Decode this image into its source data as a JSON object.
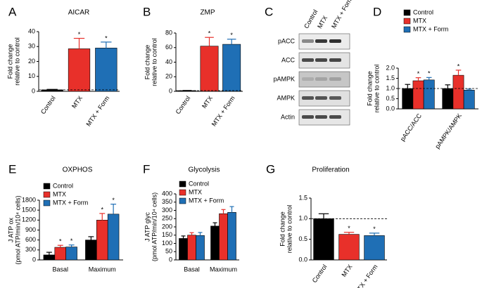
{
  "chart_data": [
    {
      "label": "A",
      "type": "bar",
      "title": "AICAR",
      "ylabel": [
        "Fold change",
        "relative to control"
      ],
      "categories": [
        "Control",
        "MTX",
        "MTX + Form"
      ],
      "values": [
        1,
        28.5,
        29
      ],
      "errors": [
        0.3,
        7,
        4
      ],
      "colors": [
        "#000000",
        "#e8302a",
        "#1f6fb5"
      ],
      "significance": [
        null,
        "*",
        "*"
      ],
      "reference_line": 1,
      "ylim": [
        0,
        40
      ],
      "yticks": [
        0,
        10,
        20,
        30,
        40
      ]
    },
    {
      "label": "B",
      "type": "bar",
      "title": "ZMP",
      "ylabel": [
        "Fold change",
        "relative to control"
      ],
      "categories": [
        "Control",
        "MTX",
        "MTX + Form"
      ],
      "values": [
        1,
        62,
        64.5
      ],
      "errors": [
        0.2,
        12,
        7
      ],
      "colors": [
        "#000000",
        "#e8302a",
        "#1f6fb5"
      ],
      "significance": [
        null,
        "*",
        "*"
      ],
      "reference_line": 1,
      "ylim": [
        0,
        80
      ],
      "yticks": [
        0,
        20,
        40,
        60,
        80
      ]
    },
    {
      "label": "D",
      "type": "grouped_bar",
      "ylabel": [
        "Fold change",
        "relative to control"
      ],
      "categories": [
        "pACC/ACC",
        "pAMPK/AMPK"
      ],
      "reference_line": 1,
      "series": [
        {
          "name": "Control",
          "color": "#000000",
          "values": [
            1,
            1
          ],
          "errors": [
            0.2,
            0.18
          ],
          "significance": [
            null,
            null
          ]
        },
        {
          "name": "MTX",
          "color": "#e8302a",
          "values": [
            1.38,
            1.65
          ],
          "errors": [
            0.15,
            0.25
          ],
          "significance": [
            "*",
            "*"
          ]
        },
        {
          "name": "MTX + Form",
          "color": "#1f6fb5",
          "values": [
            1.42,
            0.92
          ],
          "errors": [
            0.12,
            0.05
          ],
          "significance": [
            "*",
            null
          ]
        }
      ],
      "ylim": [
        0,
        2
      ],
      "yticks": [
        {
          "value": 0,
          "label": "0.0"
        },
        {
          "value": 0.5,
          "label": "0.5"
        },
        {
          "value": 1,
          "label": "1.0"
        },
        {
          "value": 1.5,
          "label": "1.5"
        },
        {
          "value": 2,
          "label": "2.0"
        }
      ]
    },
    {
      "label": "E",
      "type": "grouped_bar",
      "title": "OXPHOS",
      "ylabel": [
        "J ATP ox",
        "(pmol ATP/min/10⁴ cells)"
      ],
      "categories": [
        "Basal",
        "Maximum"
      ],
      "series": [
        {
          "name": "Control",
          "color": "#000000",
          "values": [
            150,
            600
          ],
          "errors": [
            80,
            100
          ],
          "significance": [
            null,
            null
          ]
        },
        {
          "name": "MTX",
          "color": "#e8302a",
          "values": [
            380,
            1200
          ],
          "errors": [
            60,
            200
          ],
          "significance": [
            "*",
            "*"
          ]
        },
        {
          "name": "MTX + Form",
          "color": "#1f6fb5",
          "values": [
            390,
            1380
          ],
          "errors": [
            60,
            300
          ],
          "significance": [
            "*",
            "*"
          ]
        }
      ],
      "ylim": [
        0,
        1800
      ],
      "yticks": [
        0,
        300,
        600,
        900,
        1200,
        1500,
        1800
      ]
    },
    {
      "label": "F",
      "type": "grouped_bar",
      "title": "Glycolysis",
      "ylabel": [
        "J ATP glyc",
        "(pmol ATP/min/10⁴ cells)"
      ],
      "categories": [
        "Basal",
        "Maximum"
      ],
      "series": [
        {
          "name": "Control",
          "color": "#000000",
          "values": [
            130,
            205
          ],
          "errors": [
            15,
            20
          ],
          "significance": [
            null,
            null
          ]
        },
        {
          "name": "MTX",
          "color": "#e8302a",
          "values": [
            150,
            280
          ],
          "errors": [
            15,
            25
          ],
          "significance": [
            null,
            null
          ]
        },
        {
          "name": "MTX + Form",
          "color": "#1f6fb5",
          "values": [
            148,
            288
          ],
          "errors": [
            18,
            35
          ],
          "significance": [
            null,
            null
          ]
        }
      ],
      "ylim": [
        0,
        400
      ],
      "yticks": [
        0,
        50,
        100,
        150,
        200,
        250,
        300,
        350,
        400
      ]
    },
    {
      "label": "G",
      "type": "bar",
      "title": "Proliferation",
      "ylabel": [
        "Fold change",
        "relative to control"
      ],
      "categories": [
        "Control",
        "MTX",
        "MTX + Form"
      ],
      "values": [
        1,
        0.62,
        0.59
      ],
      "errors": [
        0.12,
        0.05,
        0.06
      ],
      "colors": [
        "#000000",
        "#e8302a",
        "#1f6fb5"
      ],
      "significance": [
        null,
        "*",
        "*"
      ],
      "reference_line": 1,
      "ylim": [
        0,
        1.5
      ],
      "yticks": [
        {
          "value": 0,
          "label": "0.0"
        },
        {
          "value": 0.5,
          "label": "0.5"
        },
        {
          "value": 1,
          "label": "1.0"
        },
        {
          "value": 1.5,
          "label": "1.5"
        }
      ]
    }
  ],
  "blot": {
    "label": "C",
    "lanes": [
      "Control",
      "MTX",
      "MTX + Form"
    ],
    "rows": [
      "pACC",
      "ACC",
      "pAMPK",
      "AMPK",
      "Actin"
    ]
  }
}
